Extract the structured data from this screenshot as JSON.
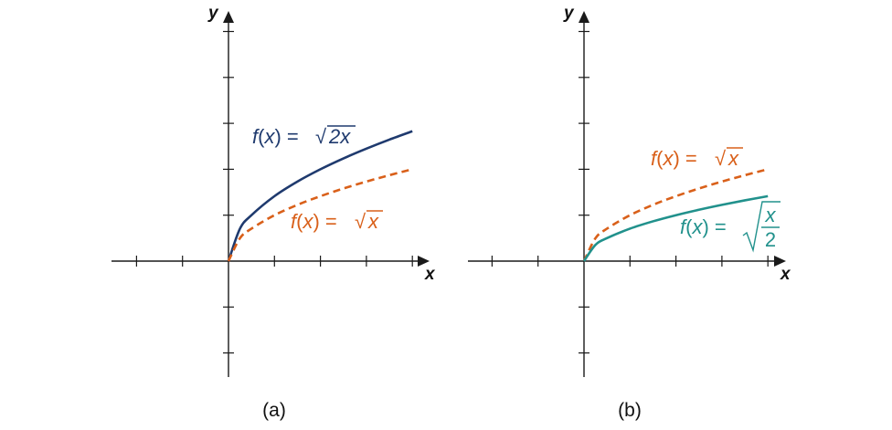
{
  "colors": {
    "navy": "#1f3a6e",
    "orange": "#d9601a",
    "teal": "#21918c",
    "axis": "#1a1a1a"
  },
  "chart_data": [
    {
      "type": "line",
      "caption": "(a)",
      "xlabel": "x",
      "ylabel": "y",
      "xlim": [
        -2.5,
        4
      ],
      "ylim": [
        -2.5,
        5
      ],
      "tick_step": 1,
      "grid": false,
      "series": [
        {
          "label_prefix": "f(x) = ",
          "radicand": "2x",
          "stroke": "navy",
          "dash": "solid",
          "x": [
            0,
            0.25,
            0.5,
            1,
            1.5,
            2,
            2.5,
            3,
            3.5,
            4
          ],
          "y": [
            0,
            0.707,
            1,
            1.414,
            1.732,
            2,
            2.236,
            2.449,
            2.646,
            2.828
          ]
        },
        {
          "label_prefix": "f(x) = ",
          "radicand": "x",
          "stroke": "orange",
          "dash": "dashed",
          "x": [
            0,
            0.25,
            0.5,
            1,
            1.5,
            2,
            2.5,
            3,
            3.5,
            4
          ],
          "y": [
            0,
            0.5,
            0.707,
            1,
            1.225,
            1.414,
            1.581,
            1.732,
            1.871,
            2
          ]
        }
      ]
    },
    {
      "type": "line",
      "caption": "(b)",
      "xlabel": "x",
      "ylabel": "y",
      "xlim": [
        -2.5,
        4
      ],
      "ylim": [
        -2.5,
        5
      ],
      "tick_step": 1,
      "grid": false,
      "series": [
        {
          "label_prefix": "f(x) = ",
          "radicand": "x",
          "stroke": "orange",
          "dash": "dashed",
          "x": [
            0,
            0.25,
            0.5,
            1,
            1.5,
            2,
            2.5,
            3,
            3.5,
            4
          ],
          "y": [
            0,
            0.5,
            0.707,
            1,
            1.225,
            1.414,
            1.581,
            1.732,
            1.871,
            2
          ]
        },
        {
          "label_prefix": "f(x) = ",
          "radicand_numerator": "x",
          "radicand_denominator": "2",
          "stroke": "teal",
          "dash": "solid",
          "x": [
            0,
            0.25,
            0.5,
            1,
            1.5,
            2,
            2.5,
            3,
            3.5,
            4
          ],
          "y": [
            0,
            0.354,
            0.5,
            0.707,
            0.866,
            1,
            1.118,
            1.225,
            1.323,
            1.414
          ]
        }
      ]
    }
  ]
}
